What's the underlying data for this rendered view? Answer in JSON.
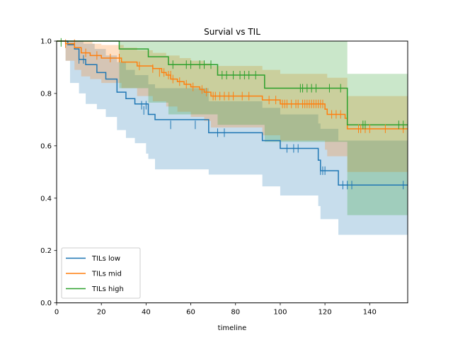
{
  "chart_data": {
    "type": "line",
    "title": "Survial vs TIL",
    "xlabel": "timeline",
    "ylabel": "",
    "xlim": [
      0,
      157
    ],
    "ylim": [
      0,
      1
    ],
    "xticks": [
      0,
      20,
      40,
      60,
      80,
      100,
      120,
      140
    ],
    "xtick_labels": [
      "0",
      "20",
      "40",
      "60",
      "80",
      "100",
      "120",
      "140"
    ],
    "yticks": [
      0,
      0.2,
      0.4,
      0.6,
      0.8,
      1.0
    ],
    "ytick_labels": [
      "0.0",
      "0.2",
      "0.4",
      "0.6",
      "0.8",
      "1.0"
    ],
    "grid": false,
    "legend_position": "bottom-left",
    "series": [
      {
        "name": "TILs low",
        "color": "#1f77b4",
        "steps": [
          [
            0,
            1.0
          ],
          [
            5,
            0.986
          ],
          [
            8,
            0.97
          ],
          [
            10,
            0.93
          ],
          [
            13,
            0.91
          ],
          [
            18,
            0.88
          ],
          [
            22,
            0.855
          ],
          [
            27,
            0.805
          ],
          [
            31,
            0.78
          ],
          [
            35,
            0.76
          ],
          [
            41,
            0.72
          ],
          [
            44,
            0.7
          ],
          [
            68,
            0.65
          ],
          [
            92,
            0.62
          ],
          [
            100,
            0.59
          ],
          [
            117,
            0.545
          ],
          [
            118,
            0.505
          ],
          [
            126,
            0.45
          ],
          [
            157,
            0.45
          ]
        ],
        "ci_upper": [
          [
            0,
            1.0
          ],
          [
            4,
            1.0
          ],
          [
            8,
            1.0
          ],
          [
            12,
            0.99
          ],
          [
            17,
            0.97
          ],
          [
            22,
            0.945
          ],
          [
            27,
            0.92
          ],
          [
            31,
            0.89
          ],
          [
            35,
            0.87
          ],
          [
            41,
            0.835
          ],
          [
            44,
            0.82
          ],
          [
            68,
            0.77
          ],
          [
            92,
            0.745
          ],
          [
            100,
            0.72
          ],
          [
            117,
            0.685
          ],
          [
            118,
            0.665
          ],
          [
            126,
            0.62
          ],
          [
            157,
            0.62
          ]
        ],
        "ci_lower": [
          [
            0,
            1.0
          ],
          [
            4,
            0.925
          ],
          [
            6,
            0.84
          ],
          [
            10,
            0.8
          ],
          [
            13,
            0.76
          ],
          [
            18,
            0.74
          ],
          [
            22,
            0.71
          ],
          [
            27,
            0.66
          ],
          [
            31,
            0.63
          ],
          [
            35,
            0.61
          ],
          [
            40,
            0.57
          ],
          [
            41,
            0.55
          ],
          [
            44,
            0.51
          ],
          [
            68,
            0.49
          ],
          [
            92,
            0.445
          ],
          [
            100,
            0.41
          ],
          [
            117,
            0.37
          ],
          [
            118,
            0.32
          ],
          [
            126,
            0.26
          ],
          [
            157,
            0.26
          ]
        ],
        "censor": [
          [
            10,
            0.93
          ],
          [
            12,
            0.93
          ],
          [
            38,
            0.755
          ],
          [
            39,
            0.735
          ],
          [
            40,
            0.755
          ],
          [
            51,
            0.68
          ],
          [
            62,
            0.68
          ],
          [
            72,
            0.65
          ],
          [
            75,
            0.65
          ],
          [
            103,
            0.59
          ],
          [
            106,
            0.59
          ],
          [
            108,
            0.59
          ],
          [
            118,
            0.505
          ],
          [
            119,
            0.505
          ],
          [
            120,
            0.505
          ],
          [
            128,
            0.45
          ],
          [
            130,
            0.45
          ],
          [
            132,
            0.45
          ],
          [
            155,
            0.45
          ]
        ]
      },
      {
        "name": "TILs mid",
        "color": "#ff7f0e",
        "steps": [
          [
            0,
            1.0
          ],
          [
            4,
            0.99
          ],
          [
            8,
            0.975
          ],
          [
            11,
            0.955
          ],
          [
            15,
            0.945
          ],
          [
            20,
            0.935
          ],
          [
            29,
            0.92
          ],
          [
            36,
            0.905
          ],
          [
            43,
            0.895
          ],
          [
            47,
            0.88
          ],
          [
            49,
            0.87
          ],
          [
            51,
            0.855
          ],
          [
            54,
            0.845
          ],
          [
            57,
            0.835
          ],
          [
            60,
            0.825
          ],
          [
            64,
            0.815
          ],
          [
            66,
            0.805
          ],
          [
            69,
            0.79
          ],
          [
            92,
            0.775
          ],
          [
            100,
            0.76
          ],
          [
            120,
            0.74
          ],
          [
            121,
            0.72
          ],
          [
            129,
            0.705
          ],
          [
            130,
            0.665
          ],
          [
            157,
            0.665
          ]
        ],
        "ci_upper": [
          [
            0,
            1.0
          ],
          [
            13,
            1.0
          ],
          [
            16,
            0.99
          ],
          [
            20,
            0.985
          ],
          [
            30,
            0.975
          ],
          [
            36,
            0.965
          ],
          [
            43,
            0.955
          ],
          [
            49,
            0.945
          ],
          [
            55,
            0.935
          ],
          [
            60,
            0.925
          ],
          [
            66,
            0.915
          ],
          [
            69,
            0.905
          ],
          [
            92,
            0.89
          ],
          [
            100,
            0.875
          ],
          [
            121,
            0.86
          ],
          [
            130,
            0.79
          ],
          [
            157,
            0.79
          ]
        ],
        "ci_lower": [
          [
            0,
            1.0
          ],
          [
            4,
            0.925
          ],
          [
            8,
            0.89
          ],
          [
            11,
            0.865
          ],
          [
            15,
            0.855
          ],
          [
            20,
            0.84
          ],
          [
            29,
            0.82
          ],
          [
            36,
            0.79
          ],
          [
            43,
            0.77
          ],
          [
            49,
            0.75
          ],
          [
            54,
            0.73
          ],
          [
            60,
            0.71
          ],
          [
            66,
            0.695
          ],
          [
            69,
            0.67
          ],
          [
            92,
            0.64
          ],
          [
            100,
            0.62
          ],
          [
            120,
            0.585
          ],
          [
            121,
            0.56
          ],
          [
            130,
            0.5
          ],
          [
            157,
            0.5
          ]
        ],
        "censor": [
          [
            13,
            0.955
          ],
          [
            18,
            0.945
          ],
          [
            24,
            0.935
          ],
          [
            28,
            0.935
          ],
          [
            37,
            0.905
          ],
          [
            43,
            0.895
          ],
          [
            46,
            0.88
          ],
          [
            48,
            0.88
          ],
          [
            50,
            0.87
          ],
          [
            51,
            0.87
          ],
          [
            52,
            0.855
          ],
          [
            55,
            0.845
          ],
          [
            58,
            0.835
          ],
          [
            61,
            0.825
          ],
          [
            65,
            0.815
          ],
          [
            67,
            0.805
          ],
          [
            70,
            0.79
          ],
          [
            71,
            0.79
          ],
          [
            73,
            0.79
          ],
          [
            75,
            0.79
          ],
          [
            77,
            0.79
          ],
          [
            79,
            0.79
          ],
          [
            83,
            0.79
          ],
          [
            86,
            0.79
          ],
          [
            95,
            0.775
          ],
          [
            98,
            0.775
          ],
          [
            101,
            0.76
          ],
          [
            102,
            0.76
          ],
          [
            103,
            0.76
          ],
          [
            105,
            0.76
          ],
          [
            107,
            0.76
          ],
          [
            108,
            0.76
          ],
          [
            110,
            0.76
          ],
          [
            111,
            0.76
          ],
          [
            112,
            0.76
          ],
          [
            113,
            0.76
          ],
          [
            114,
            0.76
          ],
          [
            115,
            0.76
          ],
          [
            116,
            0.76
          ],
          [
            117,
            0.76
          ],
          [
            118,
            0.76
          ],
          [
            119,
            0.76
          ],
          [
            123,
            0.72
          ],
          [
            125,
            0.72
          ],
          [
            127,
            0.72
          ],
          [
            135,
            0.665
          ],
          [
            136,
            0.665
          ],
          [
            138,
            0.665
          ],
          [
            140,
            0.665
          ],
          [
            147,
            0.665
          ],
          [
            155,
            0.665
          ]
        ],
        "censor_top": [
          [
            4,
            0.99
          ],
          [
            8,
            0.99
          ]
        ]
      },
      {
        "name": "TILs high",
        "color": "#2ca02c",
        "steps": [
          [
            0,
            1.0
          ],
          [
            28,
            0.97
          ],
          [
            41,
            0.94
          ],
          [
            50,
            0.91
          ],
          [
            72,
            0.87
          ],
          [
            93,
            0.82
          ],
          [
            130,
            0.68
          ],
          [
            157,
            0.68
          ]
        ],
        "ci_upper": [
          [
            0,
            1.0
          ],
          [
            128,
            1.0
          ],
          [
            130,
            0.875
          ],
          [
            157,
            0.875
          ]
        ],
        "ci_lower": [
          [
            0,
            1.0
          ],
          [
            28,
            0.82
          ],
          [
            41,
            0.765
          ],
          [
            50,
            0.72
          ],
          [
            72,
            0.68
          ],
          [
            93,
            0.615
          ],
          [
            130,
            0.335
          ],
          [
            157,
            0.335
          ]
        ],
        "censor": [
          [
            2,
            0.995
          ],
          [
            52,
            0.91
          ],
          [
            58,
            0.91
          ],
          [
            60,
            0.91
          ],
          [
            64,
            0.91
          ],
          [
            66,
            0.91
          ],
          [
            69,
            0.91
          ],
          [
            74,
            0.87
          ],
          [
            76,
            0.87
          ],
          [
            79,
            0.87
          ],
          [
            82,
            0.87
          ],
          [
            84,
            0.87
          ],
          [
            86,
            0.87
          ],
          [
            89,
            0.87
          ],
          [
            109,
            0.82
          ],
          [
            110,
            0.82
          ],
          [
            112,
            0.82
          ],
          [
            114,
            0.82
          ],
          [
            116,
            0.82
          ],
          [
            122,
            0.82
          ],
          [
            127,
            0.82
          ],
          [
            137,
            0.68
          ],
          [
            138,
            0.68
          ],
          [
            153,
            0.68
          ],
          [
            155,
            0.68
          ]
        ]
      }
    ]
  }
}
